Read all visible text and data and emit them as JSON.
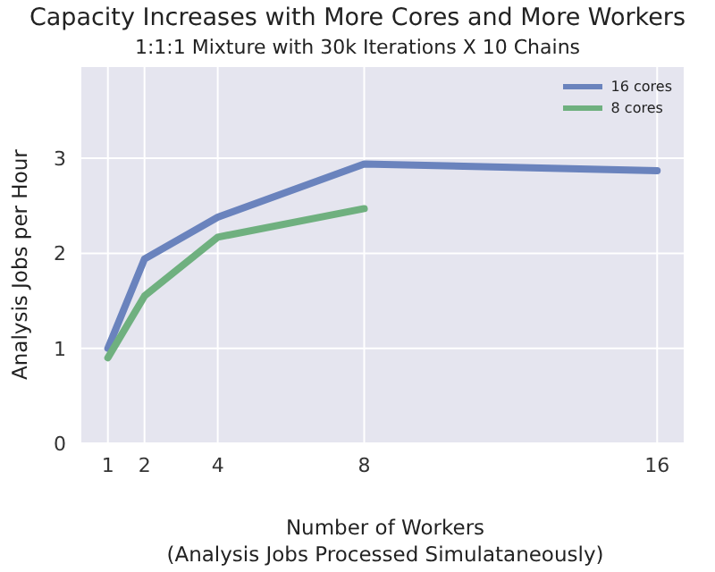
{
  "chart_data": {
    "type": "line",
    "title": "Capacity Increases with More Cores and More Workers",
    "subtitle": "1:1:1 Mixture with 30k Iterations X 10 Chains",
    "xlabel": "Number of Workers\n(Analysis Jobs Processed Simulataneously)",
    "ylabel": "Analysis Jobs per Hour",
    "x": [
      1,
      2,
      4,
      8,
      16
    ],
    "series": [
      {
        "name": "16 cores",
        "color": "#6a83bd",
        "values": [
          1.0,
          1.94,
          2.38,
          2.94,
          2.87
        ]
      },
      {
        "name": "8 cores",
        "color": "#6fb07f",
        "values": [
          0.9,
          1.55,
          2.17,
          2.47,
          null
        ]
      }
    ],
    "xlim": [
      0.25,
      16.75
    ],
    "xticks": [
      1,
      2,
      4,
      8,
      16
    ],
    "ylim": [
      0,
      3.97
    ],
    "yticks": [
      0,
      1,
      2,
      3
    ],
    "grid": true,
    "legend": "top right"
  }
}
